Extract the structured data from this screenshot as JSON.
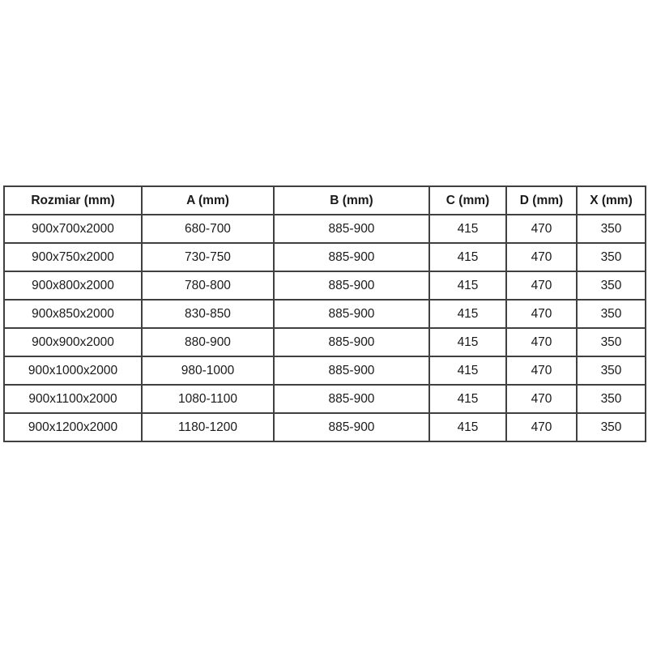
{
  "table": {
    "headers": [
      "Rozmiar (mm)",
      "A (mm)",
      "B (mm)",
      "C (mm)",
      "D (mm)",
      "X (mm)"
    ],
    "rows": [
      [
        "900x700x2000",
        "680-700",
        "885-900",
        "415",
        "470",
        "350"
      ],
      [
        "900x750x2000",
        "730-750",
        "885-900",
        "415",
        "470",
        "350"
      ],
      [
        "900x800x2000",
        "780-800",
        "885-900",
        "415",
        "470",
        "350"
      ],
      [
        "900x850x2000",
        "830-850",
        "885-900",
        "415",
        "470",
        "350"
      ],
      [
        "900x900x2000",
        "880-900",
        "885-900",
        "415",
        "470",
        "350"
      ],
      [
        "900x1000x2000",
        "980-1000",
        "885-900",
        "415",
        "470",
        "350"
      ],
      [
        "900x1100x2000",
        "1080-1100",
        "885-900",
        "415",
        "470",
        "350"
      ],
      [
        "900x1200x2000",
        "1180-1200",
        "885-900",
        "415",
        "470",
        "350"
      ]
    ],
    "border_color": "#404040",
    "text_color": "#1a1a1a",
    "background_color": "#ffffff"
  }
}
